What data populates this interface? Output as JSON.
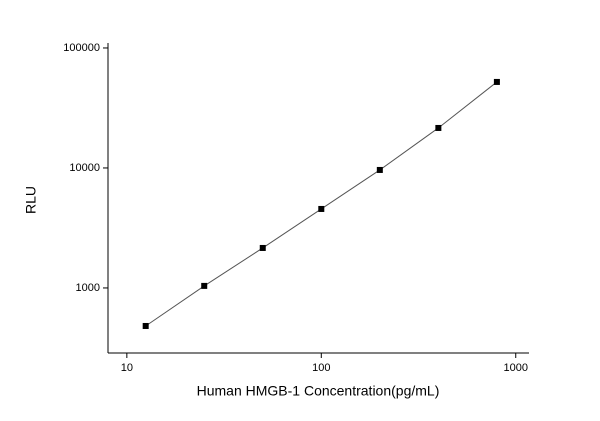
{
  "chart_data": {
    "type": "scatter",
    "x_label": "Human HMGB-1 Concentration(pg/mL)",
    "y_label": "RLU",
    "log_x": true,
    "log_y": true,
    "xlim": [
      8,
      1170
    ],
    "ylim": [
      287,
      110000
    ],
    "xticks": [
      10,
      100,
      1000
    ],
    "yticks": [
      1000,
      10000,
      100000
    ],
    "series": [
      {
        "color": "#000000",
        "line_color": "#555555",
        "x": [
          12.5,
          25,
          50,
          100,
          200,
          400,
          800
        ],
        "values": [
          482,
          1040,
          2154,
          4553,
          9624,
          21544,
          52100
        ]
      }
    ]
  }
}
